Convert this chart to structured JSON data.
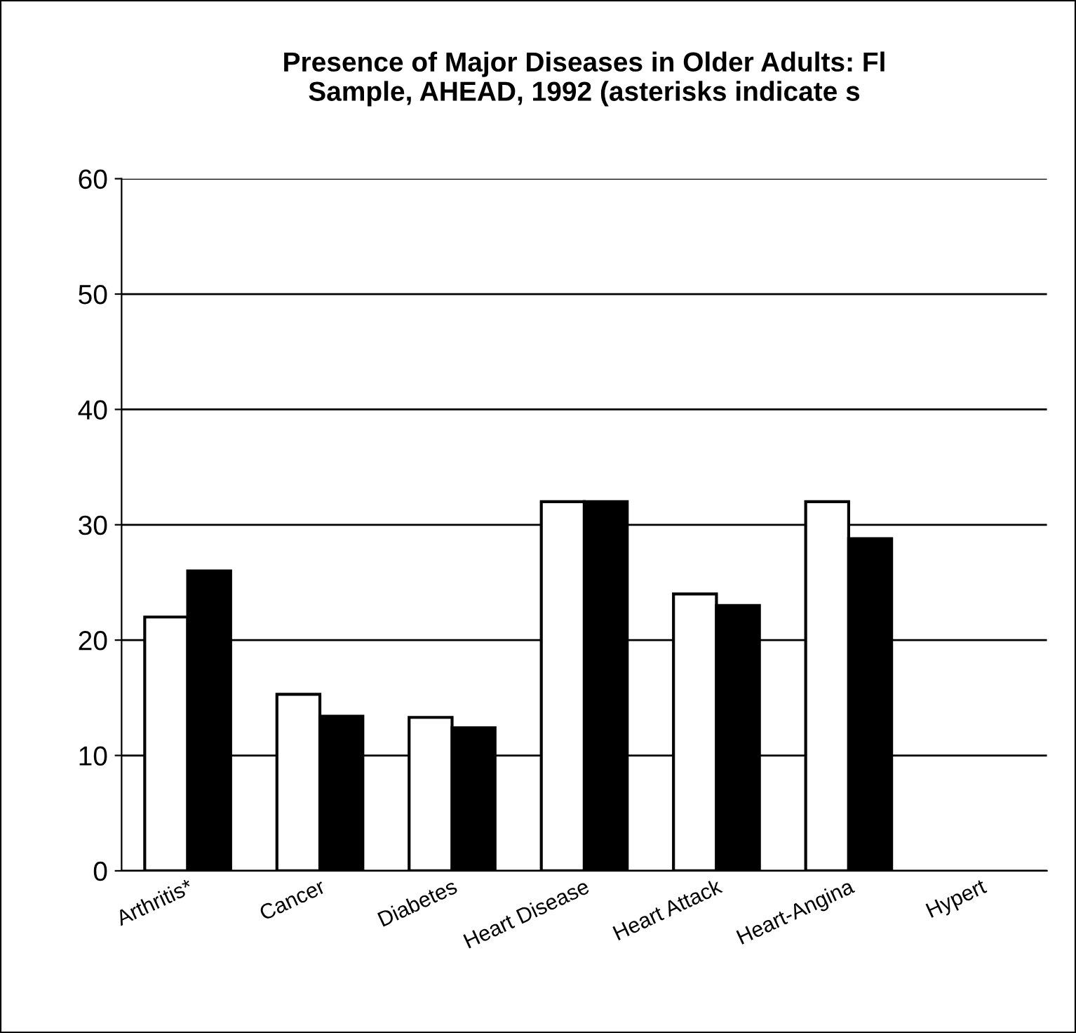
{
  "chart_data": {
    "type": "bar",
    "title": "Presence of Major Diseases in Older Adults: Fl\nSample, AHEAD, 1992 (asterisks indicate s",
    "categories": [
      "Arthritis*",
      "Cancer",
      "Diabetes",
      "Heart Disease",
      "Heart Attack",
      "Heart-Angina",
      "Hypert"
    ],
    "series": [
      {
        "color": "#ffffff",
        "values": [
          22,
          15.3,
          13.3,
          32,
          24,
          32,
          null
        ]
      },
      {
        "color": "#000000",
        "values": [
          26,
          13.4,
          12.4,
          32,
          23,
          28.8,
          null
        ]
      }
    ],
    "ylim": [
      0,
      60
    ],
    "yticks": [
      0,
      10,
      20,
      30,
      40,
      50,
      60
    ],
    "grid": "y",
    "legend": false
  }
}
